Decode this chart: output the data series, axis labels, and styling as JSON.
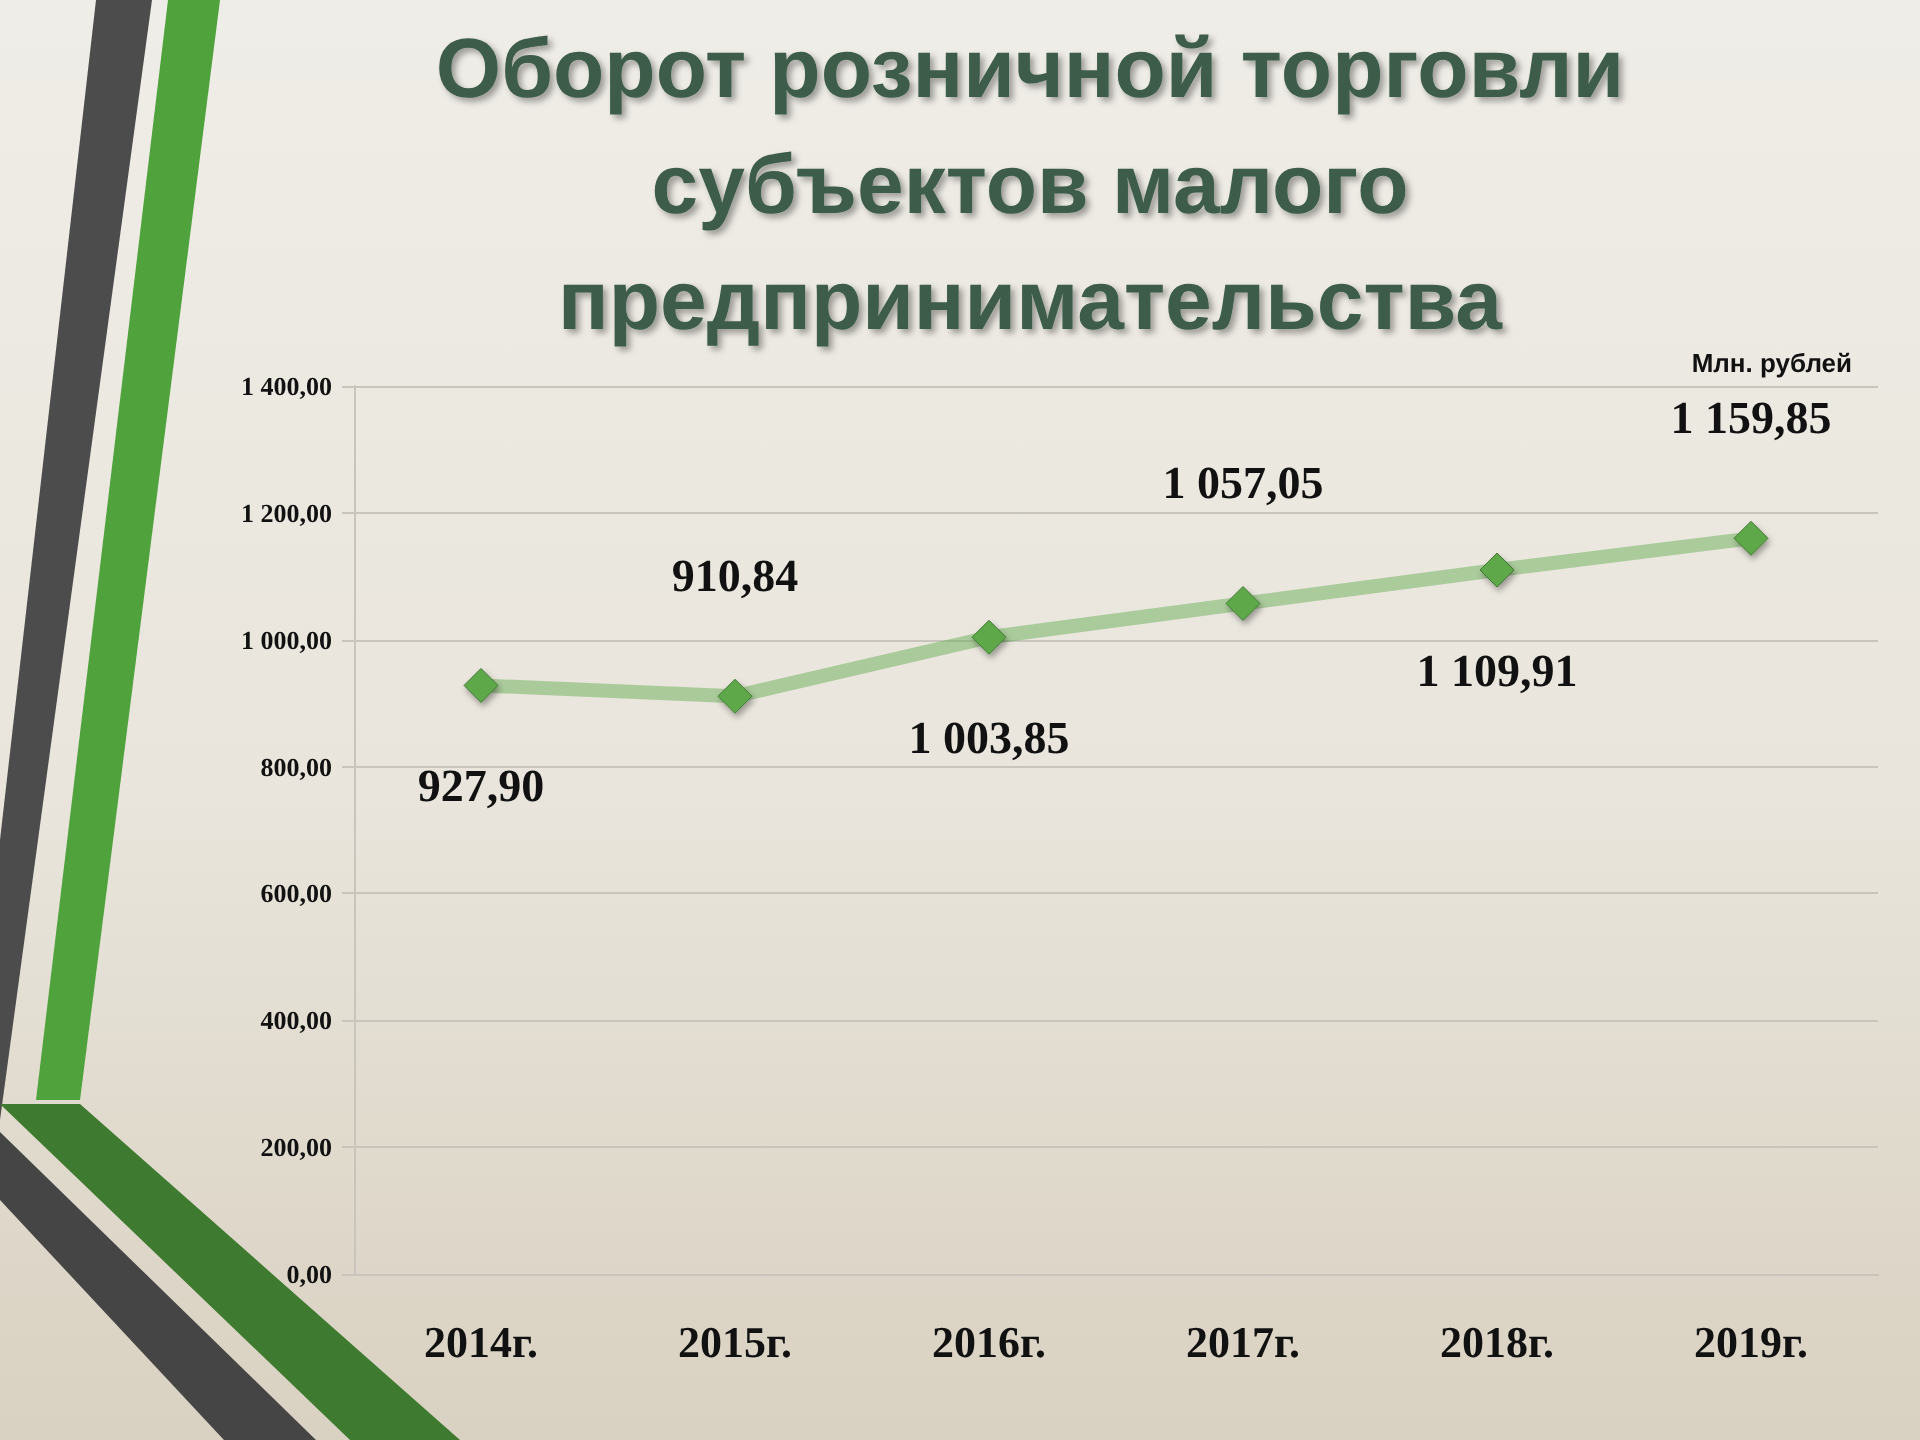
{
  "chart_data": {
    "type": "line",
    "title": "Оборот розничной торговли субъектов малого предпринимательства",
    "ylabel": "Млн. рублей",
    "categories": [
      "2014г.",
      "2015г.",
      "2016г.",
      "2017г.",
      "2018г.",
      "2019г."
    ],
    "values": [
      927.9,
      910.84,
      1003.85,
      1057.05,
      1109.91,
      1159.85
    ],
    "value_labels": [
      "927,90",
      "910,84",
      "1 003,85",
      "1 057,05",
      "1 109,91",
      "1 159,85"
    ],
    "color": "#5ea84a",
    "marker": "diamond",
    "line_style": "solid",
    "ylim": [
      0,
      1400
    ],
    "yticks": [
      {
        "value": 0,
        "label": "0,00"
      },
      {
        "value": 200,
        "label": "200,00"
      },
      {
        "value": 400,
        "label": "400,00"
      },
      {
        "value": 600,
        "label": "600,00"
      },
      {
        "value": 800,
        "label": "800,00"
      },
      {
        "value": 1000,
        "label": "1 000,00"
      },
      {
        "value": 1200,
        "label": "1 200,00"
      },
      {
        "value": 1400,
        "label": "1 400,00"
      }
    ],
    "grid": "y"
  }
}
